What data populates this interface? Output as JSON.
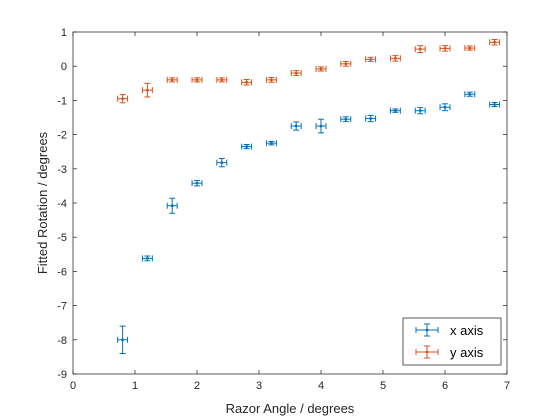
{
  "chart_data": {
    "type": "scatter",
    "title": "",
    "xlabel": "Razor Angle / degrees",
    "ylabel": "Fitted Rotation / degrees",
    "xlim": [
      0,
      7
    ],
    "ylim": [
      -9,
      1
    ],
    "xticks": [
      0,
      1,
      2,
      3,
      4,
      5,
      6,
      7
    ],
    "yticks": [
      1,
      0,
      -1,
      -2,
      -3,
      -4,
      -5,
      -6,
      -7,
      -8,
      -9
    ],
    "grid": false,
    "legend_position": "bottom-right",
    "series": [
      {
        "name": "x axis",
        "color": "#0072BD",
        "marker": "point",
        "error_bars": "both",
        "points": [
          {
            "x": 0.8,
            "y": -8.0,
            "xerr": 0.08,
            "yerr": 0.4
          },
          {
            "x": 1.2,
            "y": -5.62,
            "xerr": 0.08,
            "yerr": 0.07
          },
          {
            "x": 1.6,
            "y": -4.08,
            "xerr": 0.08,
            "yerr": 0.22
          },
          {
            "x": 2.0,
            "y": -3.42,
            "xerr": 0.08,
            "yerr": 0.08
          },
          {
            "x": 2.4,
            "y": -2.82,
            "xerr": 0.08,
            "yerr": 0.12
          },
          {
            "x": 2.8,
            "y": -2.35,
            "xerr": 0.08,
            "yerr": 0.06
          },
          {
            "x": 3.2,
            "y": -2.25,
            "xerr": 0.08,
            "yerr": 0.05
          },
          {
            "x": 3.6,
            "y": -1.75,
            "xerr": 0.08,
            "yerr": 0.12
          },
          {
            "x": 4.0,
            "y": -1.75,
            "xerr": 0.08,
            "yerr": 0.2
          },
          {
            "x": 4.4,
            "y": -1.55,
            "xerr": 0.08,
            "yerr": 0.07
          },
          {
            "x": 4.8,
            "y": -1.53,
            "xerr": 0.08,
            "yerr": 0.09
          },
          {
            "x": 5.2,
            "y": -1.3,
            "xerr": 0.08,
            "yerr": 0.05
          },
          {
            "x": 5.6,
            "y": -1.3,
            "xerr": 0.08,
            "yerr": 0.09
          },
          {
            "x": 6.0,
            "y": -1.2,
            "xerr": 0.08,
            "yerr": 0.1
          },
          {
            "x": 6.4,
            "y": -0.82,
            "xerr": 0.08,
            "yerr": 0.06
          },
          {
            "x": 6.8,
            "y": -1.12,
            "xerr": 0.08,
            "yerr": 0.06
          }
        ]
      },
      {
        "name": "y axis",
        "color": "#D95319",
        "marker": "point",
        "error_bars": "both",
        "points": [
          {
            "x": 0.8,
            "y": -0.95,
            "xerr": 0.08,
            "yerr": 0.12
          },
          {
            "x": 1.2,
            "y": -0.7,
            "xerr": 0.08,
            "yerr": 0.2
          },
          {
            "x": 1.6,
            "y": -0.4,
            "xerr": 0.08,
            "yerr": 0.06
          },
          {
            "x": 2.0,
            "y": -0.4,
            "xerr": 0.08,
            "yerr": 0.06
          },
          {
            "x": 2.4,
            "y": -0.4,
            "xerr": 0.08,
            "yerr": 0.06
          },
          {
            "x": 2.8,
            "y": -0.47,
            "xerr": 0.08,
            "yerr": 0.08
          },
          {
            "x": 3.2,
            "y": -0.4,
            "xerr": 0.08,
            "yerr": 0.07
          },
          {
            "x": 3.6,
            "y": -0.2,
            "xerr": 0.08,
            "yerr": 0.07
          },
          {
            "x": 4.0,
            "y": -0.08,
            "xerr": 0.08,
            "yerr": 0.06
          },
          {
            "x": 4.4,
            "y": 0.07,
            "xerr": 0.08,
            "yerr": 0.07
          },
          {
            "x": 4.8,
            "y": 0.2,
            "xerr": 0.08,
            "yerr": 0.06
          },
          {
            "x": 5.2,
            "y": 0.23,
            "xerr": 0.08,
            "yerr": 0.08
          },
          {
            "x": 5.6,
            "y": 0.5,
            "xerr": 0.08,
            "yerr": 0.1
          },
          {
            "x": 6.0,
            "y": 0.52,
            "xerr": 0.08,
            "yerr": 0.08
          },
          {
            "x": 6.4,
            "y": 0.53,
            "xerr": 0.08,
            "yerr": 0.06
          },
          {
            "x": 6.8,
            "y": 0.7,
            "xerr": 0.08,
            "yerr": 0.08
          }
        ]
      }
    ]
  }
}
